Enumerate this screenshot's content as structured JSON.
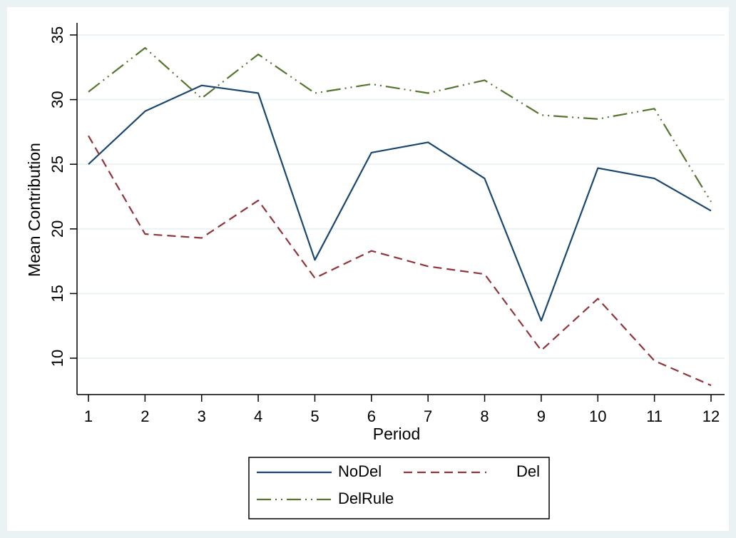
{
  "chart_data": {
    "type": "line",
    "title": "",
    "xlabel": "Period",
    "ylabel": "Mean Contribution",
    "x": [
      1,
      2,
      3,
      4,
      5,
      6,
      7,
      8,
      9,
      10,
      11,
      12
    ],
    "x_ticks": [
      "1",
      "2",
      "3",
      "4",
      "5",
      "6",
      "7",
      "8",
      "9",
      "10",
      "11",
      "12"
    ],
    "y_ticks": [
      "10",
      "15",
      "20",
      "25",
      "30",
      "35"
    ],
    "xlim": [
      1,
      12
    ],
    "ylim": [
      8,
      35
    ],
    "grid": true,
    "legend_position": "bottom",
    "series": [
      {
        "name": "NoDel",
        "color": "#1a476f",
        "style": "solid",
        "values": [
          25.0,
          29.1,
          31.1,
          30.5,
          17.6,
          25.9,
          26.7,
          23.9,
          12.9,
          24.7,
          23.9,
          21.4
        ]
      },
      {
        "name": "Del",
        "color": "#90353b",
        "style": "dashed",
        "values": [
          27.2,
          19.6,
          19.3,
          22.2,
          16.2,
          18.3,
          17.1,
          16.5,
          10.6,
          14.6,
          9.8,
          7.9
        ]
      },
      {
        "name": "DelRule",
        "color": "#55752f",
        "style": "dash-dot-dot",
        "values": [
          30.6,
          34.0,
          30.1,
          33.5,
          30.5,
          31.2,
          30.5,
          31.5,
          28.8,
          28.5,
          29.3,
          22.1
        ]
      }
    ]
  }
}
